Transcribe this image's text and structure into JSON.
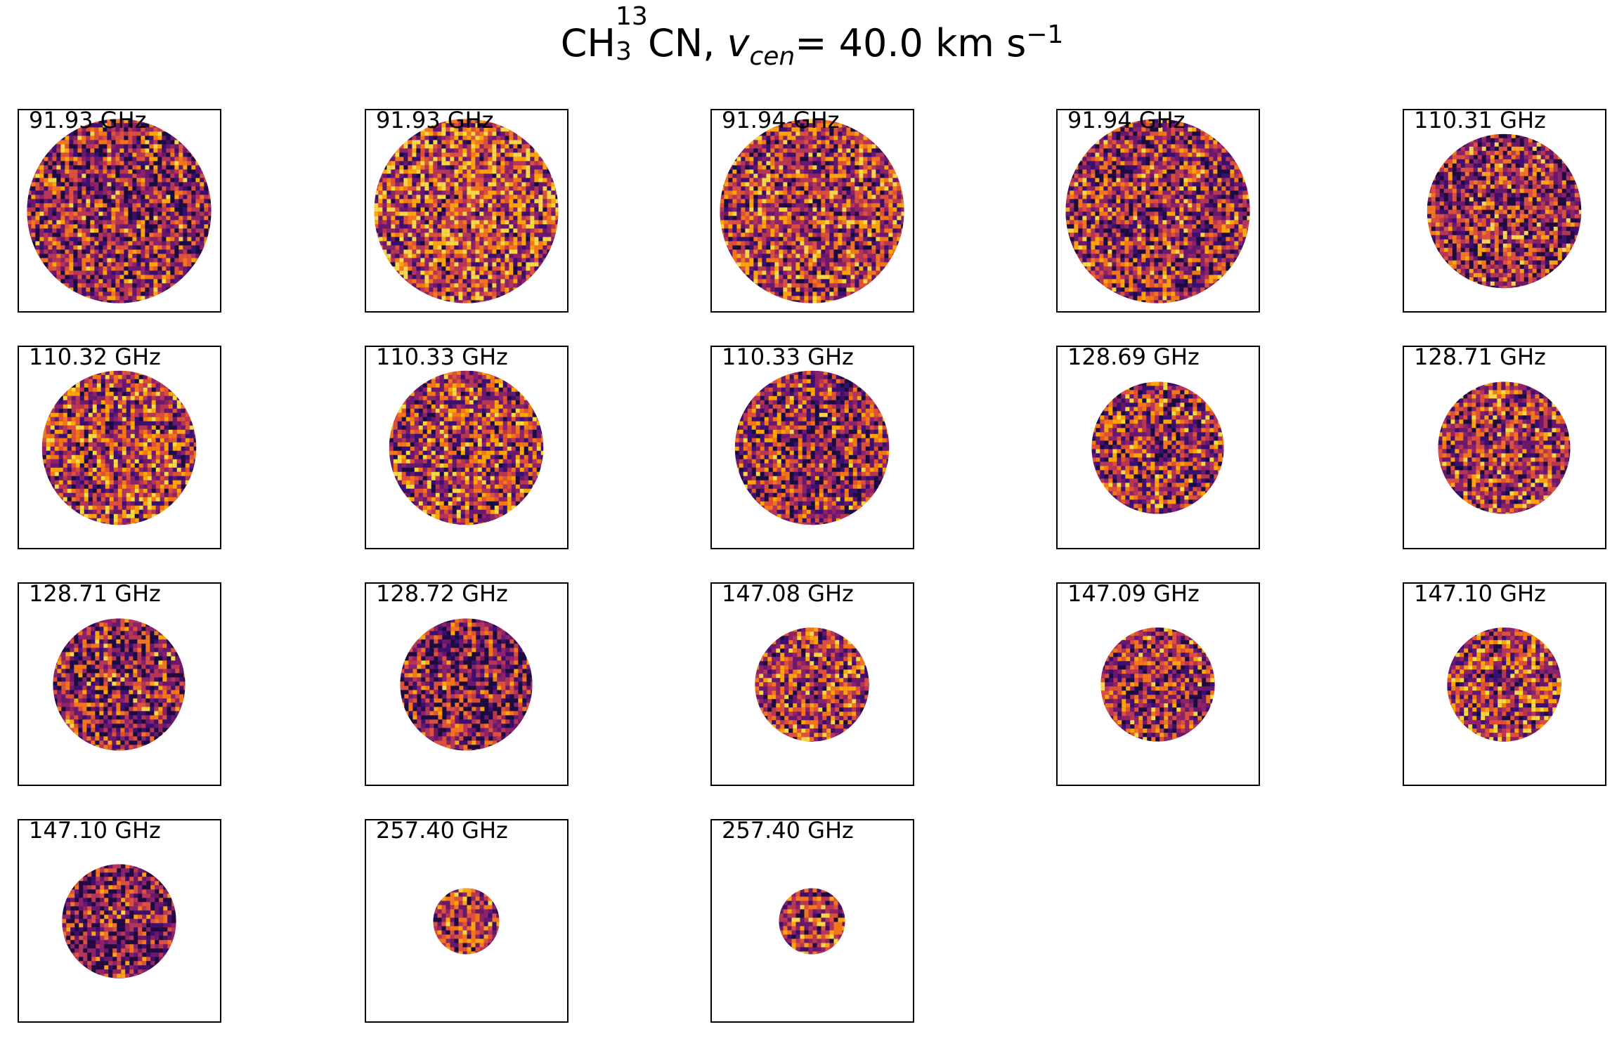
{
  "figure": {
    "title_molecule_base": "CH",
    "title_sub": "3",
    "title_sup": "13",
    "title_molecule_tail": "CN,",
    "title_var": "v",
    "title_var_sub": "cen",
    "title_eq": "=",
    "title_value": "40.0 km s",
    "title_exp": "−1"
  },
  "colormap": [
    "#1a0b40",
    "#3b0f70",
    "#6a176e",
    "#8c2369",
    "#b63655",
    "#dd513a",
    "#f3771a",
    "#fca50a",
    "#f6d746"
  ],
  "panels": [
    {
      "label": "91.93 GHz",
      "disk_fraction": 0.92,
      "brightness": 0.42
    },
    {
      "label": "91.93 GHz",
      "disk_fraction": 0.92,
      "brightness": 0.56
    },
    {
      "label": "91.94 GHz",
      "disk_fraction": 0.92,
      "brightness": 0.5
    },
    {
      "label": "91.94 GHz",
      "disk_fraction": 0.92,
      "brightness": 0.44
    },
    {
      "label": "110.31 GHz",
      "disk_fraction": 0.77,
      "brightness": 0.42
    },
    {
      "label": "110.32 GHz",
      "disk_fraction": 0.77,
      "brightness": 0.52
    },
    {
      "label": "110.33 GHz",
      "disk_fraction": 0.77,
      "brightness": 0.5
    },
    {
      "label": "110.33 GHz",
      "disk_fraction": 0.77,
      "brightness": 0.4
    },
    {
      "label": "128.69 GHz",
      "disk_fraction": 0.66,
      "brightness": 0.46
    },
    {
      "label": "128.71 GHz",
      "disk_fraction": 0.66,
      "brightness": 0.48
    },
    {
      "label": "128.71 GHz",
      "disk_fraction": 0.66,
      "brightness": 0.4
    },
    {
      "label": "128.72 GHz",
      "disk_fraction": 0.66,
      "brightness": 0.34
    },
    {
      "label": "147.08 GHz",
      "disk_fraction": 0.57,
      "brightness": 0.5
    },
    {
      "label": "147.09 GHz",
      "disk_fraction": 0.57,
      "brightness": 0.46
    },
    {
      "label": "147.10 GHz",
      "disk_fraction": 0.57,
      "brightness": 0.52
    },
    {
      "label": "147.10 GHz",
      "disk_fraction": 0.57,
      "brightness": 0.32
    },
    {
      "label": "257.40 GHz",
      "disk_fraction": 0.33,
      "brightness": 0.48
    },
    {
      "label": "257.40 GHz",
      "disk_fraction": 0.33,
      "brightness": 0.48
    }
  ]
}
